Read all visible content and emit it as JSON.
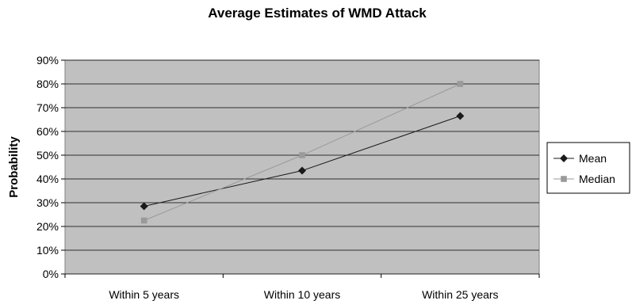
{
  "chart_data": {
    "type": "line",
    "title": "Average Estimates of WMD Attack",
    "xlabel": "",
    "ylabel": "Probability",
    "categories": [
      "Within 5 years",
      "Within 10 years",
      "Within 25 years"
    ],
    "ylim": [
      0,
      90
    ],
    "yticks": [
      "0%",
      "10%",
      "20%",
      "30%",
      "40%",
      "50%",
      "60%",
      "70%",
      "80%",
      "90%"
    ],
    "grid": true,
    "legend_position": "right",
    "plot_background": "#c0c0c0",
    "series": [
      {
        "name": "Mean",
        "values": [
          28.5,
          43.5,
          66.5
        ],
        "color": "#1a1a1a",
        "marker": "diamond"
      },
      {
        "name": "Median",
        "values": [
          22.5,
          50,
          80
        ],
        "color": "#9a9a9a",
        "marker": "square"
      }
    ]
  }
}
